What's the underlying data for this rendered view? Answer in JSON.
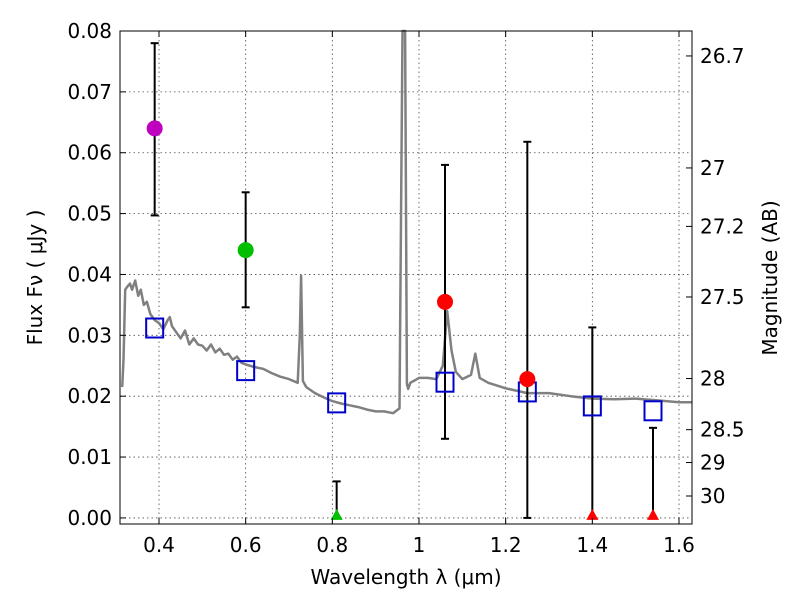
{
  "chart_data": {
    "type": "scatter",
    "xlabel": "Wavelength  λ (μm)",
    "ylabel": "Flux  Fν  ( μJy )",
    "ylabel_right": "Magnitude (AB)",
    "xlim": [
      0.31,
      1.63
    ],
    "ylim": [
      -0.001,
      0.08
    ],
    "x_ticks": [
      0.4,
      0.6,
      0.8,
      1.0,
      1.2,
      1.4,
      1.6
    ],
    "x_tick_labels": [
      "0.4",
      "0.6",
      "0.8",
      "1",
      "1.2",
      "1.4",
      "1.6"
    ],
    "y_ticks": [
      0.0,
      0.01,
      0.02,
      0.03,
      0.04,
      0.05,
      0.06,
      0.07,
      0.08
    ],
    "y_tick_labels": [
      "0.00",
      "0.01",
      "0.02",
      "0.03",
      "0.04",
      "0.05",
      "0.06",
      "0.07",
      "0.08"
    ],
    "right_ticks": [
      {
        "label": "26.7",
        "flux": 0.0759
      },
      {
        "label": "27",
        "flux": 0.0575
      },
      {
        "label": "27.2",
        "flux": 0.0479
      },
      {
        "label": "27.5",
        "flux": 0.0363
      },
      {
        "label": "28",
        "flux": 0.0229
      },
      {
        "label": "28.5",
        "flux": 0.0145
      },
      {
        "label": "29",
        "flux": 0.0091
      },
      {
        "label": "30",
        "flux": 0.0036
      }
    ],
    "grid": true,
    "colors": {
      "sed": "#808080",
      "model": "#0000cc",
      "errorbar": "#000000"
    },
    "observed": [
      {
        "x": 0.39,
        "y": 0.064,
        "err_low": 0.0497,
        "err_high": 0.078,
        "color": "#bf00bf",
        "marker": "circle"
      },
      {
        "x": 0.6,
        "y": 0.044,
        "err_low": 0.0346,
        "err_high": 0.0535,
        "color": "#00bf00",
        "marker": "circle"
      },
      {
        "x": 0.81,
        "y": 0.0,
        "err_low": 0.0,
        "err_high": 0.006,
        "color": "#00bf00",
        "marker": "triangle"
      },
      {
        "x": 1.06,
        "y": 0.0355,
        "err_low": 0.013,
        "err_high": 0.058,
        "color": "#ff0000",
        "marker": "circle"
      },
      {
        "x": 1.25,
        "y": 0.0228,
        "err_low": 0.0,
        "err_high": 0.0618,
        "color": "#ff0000",
        "marker": "circle"
      },
      {
        "x": 1.4,
        "y": 0.0,
        "err_low": 0.0,
        "err_high": 0.0313,
        "color": "#ff0000",
        "marker": "triangle"
      },
      {
        "x": 1.54,
        "y": 0.0,
        "err_low": 0.0,
        "err_high": 0.0148,
        "color": "#ff0000",
        "marker": "triangle"
      }
    ],
    "model_points": [
      {
        "x": 0.39,
        "y": 0.0312
      },
      {
        "x": 0.6,
        "y": 0.0242
      },
      {
        "x": 0.81,
        "y": 0.0189
      },
      {
        "x": 1.06,
        "y": 0.0223
      },
      {
        "x": 1.25,
        "y": 0.0207
      },
      {
        "x": 1.4,
        "y": 0.0184
      },
      {
        "x": 1.54,
        "y": 0.0176
      }
    ],
    "sed_x": [
      0.315,
      0.318,
      0.322,
      0.327,
      0.333,
      0.338,
      0.345,
      0.352,
      0.358,
      0.365,
      0.372,
      0.38,
      0.39,
      0.4,
      0.41,
      0.42,
      0.425,
      0.43,
      0.44,
      0.45,
      0.46,
      0.47,
      0.48,
      0.49,
      0.5,
      0.51,
      0.52,
      0.53,
      0.54,
      0.55,
      0.56,
      0.57,
      0.58,
      0.59,
      0.6,
      0.62,
      0.64,
      0.66,
      0.68,
      0.7,
      0.72,
      0.725,
      0.728,
      0.732,
      0.74,
      0.76,
      0.78,
      0.8,
      0.82,
      0.84,
      0.86,
      0.88,
      0.9,
      0.92,
      0.94,
      0.955,
      0.962,
      0.965,
      0.968,
      0.972,
      0.975,
      0.98,
      0.99,
      1.0,
      1.02,
      1.04,
      1.055,
      1.065,
      1.075,
      1.085,
      1.1,
      1.12,
      1.13,
      1.14,
      1.16,
      1.2,
      1.25,
      1.3,
      1.35,
      1.4,
      1.45,
      1.5,
      1.55,
      1.6,
      1.63
    ],
    "sed_y": [
      0.0215,
      0.026,
      0.0375,
      0.038,
      0.0385,
      0.0375,
      0.039,
      0.0365,
      0.0375,
      0.035,
      0.0355,
      0.0335,
      0.0325,
      0.032,
      0.031,
      0.0325,
      0.033,
      0.0315,
      0.0305,
      0.0295,
      0.0308,
      0.0285,
      0.0295,
      0.0285,
      0.0283,
      0.0275,
      0.0285,
      0.0272,
      0.0278,
      0.0268,
      0.027,
      0.026,
      0.0265,
      0.0255,
      0.0252,
      0.0248,
      0.0245,
      0.0238,
      0.0232,
      0.0228,
      0.0222,
      0.03,
      0.0398,
      0.0225,
      0.0215,
      0.0205,
      0.0198,
      0.0192,
      0.0188,
      0.0185,
      0.0182,
      0.0178,
      0.0175,
      0.0175,
      0.0172,
      0.018,
      0.0815,
      0.0815,
      0.0815,
      0.022,
      0.0212,
      0.0222,
      0.0226,
      0.023,
      0.023,
      0.0228,
      0.025,
      0.034,
      0.0275,
      0.024,
      0.0228,
      0.0235,
      0.027,
      0.023,
      0.0222,
      0.0213,
      0.0205,
      0.0205,
      0.02,
      0.0196,
      0.0195,
      0.0196,
      0.0193,
      0.019,
      0.019
    ]
  }
}
